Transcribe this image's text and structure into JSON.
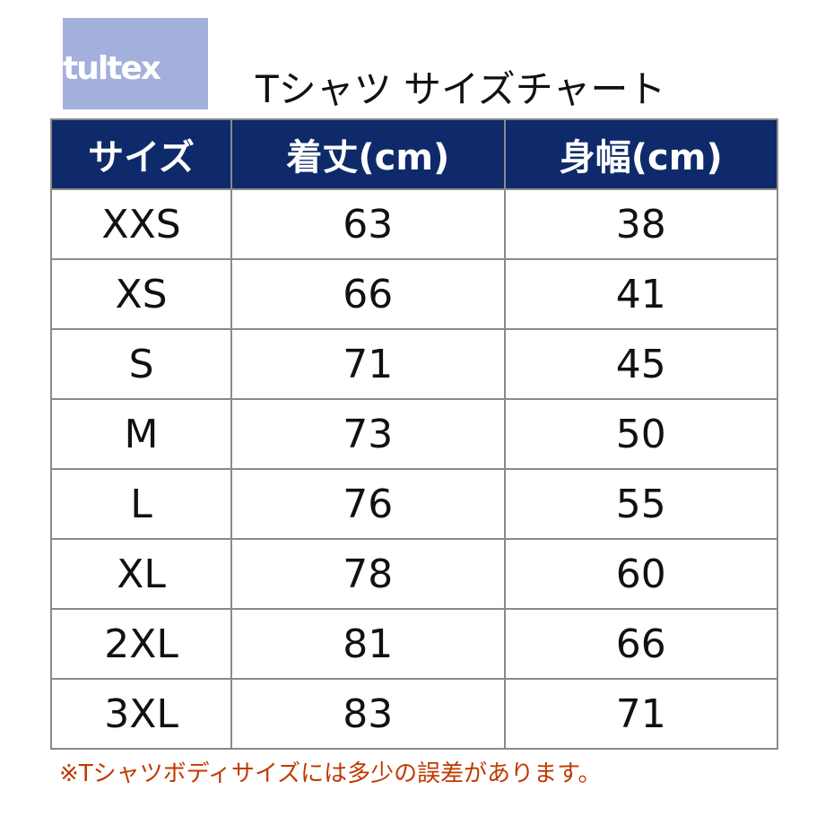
{
  "logo": "tultex",
  "title": "Tシャツ サイズチャート",
  "table": {
    "headers": [
      "サイズ",
      "着丈(cm)",
      "身幅(cm)"
    ],
    "rows": [
      [
        "XXS",
        "63",
        "38"
      ],
      [
        "XS",
        "66",
        "41"
      ],
      [
        "S",
        "71",
        "45"
      ],
      [
        "M",
        "73",
        "50"
      ],
      [
        "L",
        "76",
        "55"
      ],
      [
        "XL",
        "78",
        "60"
      ],
      [
        "2XL",
        "81",
        "66"
      ],
      [
        "3XL",
        "83",
        "71"
      ]
    ]
  },
  "note": "※Tシャツボディサイズには多少の誤差があります。"
}
